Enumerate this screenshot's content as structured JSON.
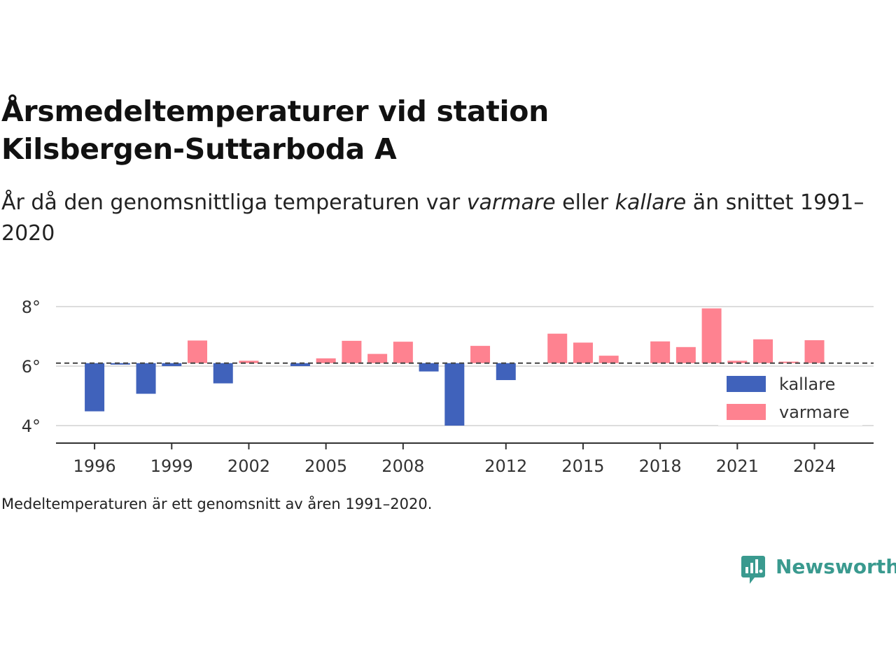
{
  "title_line1": "Årsmedeltemperaturer vid station",
  "title_line2": "Kilsbergen-Suttarboda A",
  "subtitle": {
    "part1": "År då den genomsnittliga temperaturen var ",
    "warm_word": "varmare",
    "part2": " eller ",
    "cold_word": "kallare",
    "part3": " än snittet 1991–2020"
  },
  "footnote": "Medeltemperaturen är ett genomsnitt av åren 1991–2020.",
  "brand": "Newsworthy",
  "colors": {
    "kallare": "#4062bb",
    "varmare": "#fe8290",
    "brand": "#3a9a8f"
  },
  "chart_data": {
    "type": "bar",
    "baseline": 6.1,
    "ylim": [
      3.5,
      8.5
    ],
    "yticks": [
      4,
      6,
      8
    ],
    "ytick_labels": [
      "4°",
      "6°",
      "8°"
    ],
    "xlim": [
      1994.5,
      2026.3
    ],
    "xticks": [
      1996,
      1999,
      2002,
      2005,
      2008,
      2012,
      2015,
      2018,
      2021,
      2024
    ],
    "xtick_labels": [
      "1996",
      "1999",
      "2002",
      "2005",
      "2008",
      "2012",
      "2015",
      "2018",
      "2021",
      "2024"
    ],
    "legend": [
      {
        "key": "kallare",
        "label": "kallare"
      },
      {
        "key": "varmare",
        "label": "varmare"
      }
    ],
    "legend_position": "bottom-right",
    "grid": true,
    "series": [
      {
        "name": "kallare",
        "points": [
          {
            "x": 1996,
            "y": 4.48
          },
          {
            "x": 1997,
            "y": 6.05
          },
          {
            "x": 1998,
            "y": 5.07
          },
          {
            "x": 1999,
            "y": 6.0
          },
          {
            "x": 2001,
            "y": 5.42
          },
          {
            "x": 2004,
            "y": 6.0
          },
          {
            "x": 2009,
            "y": 5.82
          },
          {
            "x": 2010,
            "y": 4.0
          },
          {
            "x": 2012,
            "y": 5.53
          }
        ]
      },
      {
        "name": "varmare",
        "points": [
          {
            "x": 2000,
            "y": 6.86
          },
          {
            "x": 2002,
            "y": 6.18
          },
          {
            "x": 2005,
            "y": 6.26
          },
          {
            "x": 2006,
            "y": 6.85
          },
          {
            "x": 2007,
            "y": 6.41
          },
          {
            "x": 2008,
            "y": 6.82
          },
          {
            "x": 2011,
            "y": 6.68
          },
          {
            "x": 2014,
            "y": 7.09
          },
          {
            "x": 2015,
            "y": 6.79
          },
          {
            "x": 2016,
            "y": 6.35
          },
          {
            "x": 2018,
            "y": 6.83
          },
          {
            "x": 2019,
            "y": 6.64
          },
          {
            "x": 2020,
            "y": 7.94
          },
          {
            "x": 2021,
            "y": 6.18
          },
          {
            "x": 2022,
            "y": 6.9
          },
          {
            "x": 2023,
            "y": 6.15
          },
          {
            "x": 2024,
            "y": 6.87
          }
        ]
      }
    ]
  }
}
